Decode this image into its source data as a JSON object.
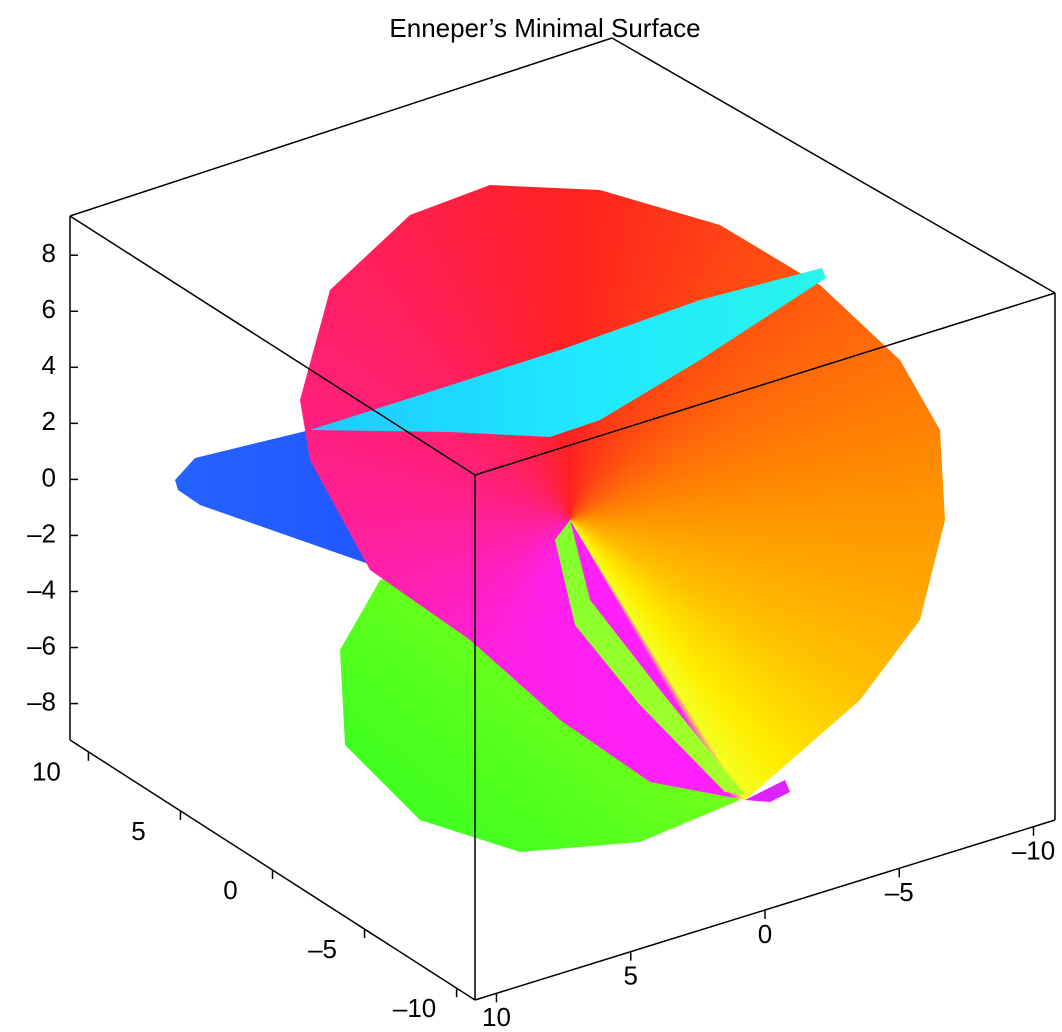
{
  "chart_data": {
    "type": "surface3d",
    "title": "Enneper’s Minimal Surface",
    "zlim": [
      -9.3,
      9.4
    ],
    "zticks": [
      {
        "value": -8,
        "label": "–8"
      },
      {
        "value": -6,
        "label": "–6"
      },
      {
        "value": -4,
        "label": "–4"
      },
      {
        "value": -2,
        "label": "–2"
      },
      0,
      2,
      4,
      6,
      8
    ],
    "ylim": [
      11,
      -11
    ],
    "yticks": [
      10,
      5,
      0,
      {
        "value": -5,
        "label": "–5"
      },
      {
        "value": -10,
        "label": "–10"
      }
    ],
    "xlim": [
      10.8,
      -10.8
    ],
    "xticks": [
      10,
      5,
      0,
      {
        "value": -5,
        "label": "–5"
      },
      {
        "value": -10,
        "label": "–10"
      }
    ]
  }
}
